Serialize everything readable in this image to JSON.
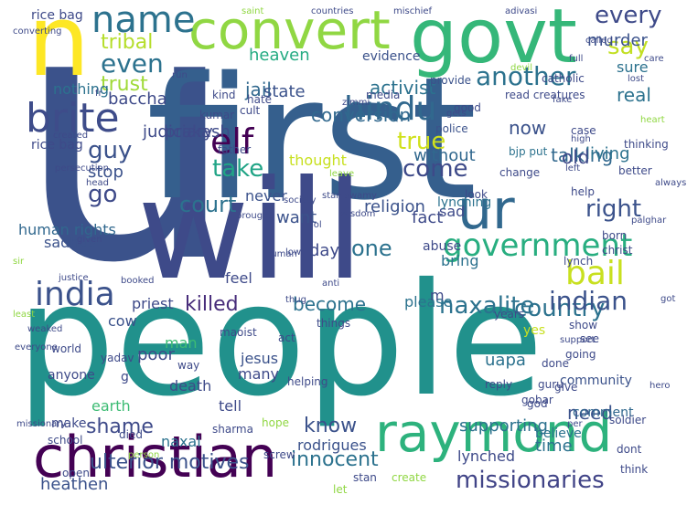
{
  "palette": {
    "purple": "#440154",
    "indigo": "#414487",
    "blue": "#355f8d",
    "teal": "#21918c",
    "green": "#35b779",
    "lime": "#90d743",
    "yellow": "#fde725"
  },
  "words": [
    {
      "text": "u",
      "color": "#3b528b"
    },
    {
      "text": "first",
      "color": "#355f8d"
    },
    {
      "text": "people",
      "color": "#21918c"
    },
    {
      "text": "will",
      "color": "#3e4a89"
    },
    {
      "text": "govt",
      "color": "#35b779"
    },
    {
      "text": "convert",
      "color": "#90d743"
    },
    {
      "text": "n",
      "color": "#fde725"
    },
    {
      "text": "christian",
      "color": "#440154"
    },
    {
      "text": "raymond",
      "color": "#2db27d"
    },
    {
      "text": "ur",
      "color": "#31688e"
    },
    {
      "text": "name",
      "color": "#2c728e"
    },
    {
      "text": "brite",
      "color": "#3e4c8a"
    },
    {
      "text": "government",
      "color": "#28ae80"
    },
    {
      "text": "india",
      "color": "#3b528b"
    },
    {
      "text": "elf",
      "color": "#440154"
    },
    {
      "text": "hindu",
      "color": "#31688e"
    },
    {
      "text": "bail",
      "color": "#c8e020"
    },
    {
      "text": "missionaries",
      "color": "#414487"
    },
    {
      "text": "naxalite",
      "color": "#2c728e"
    },
    {
      "text": "country",
      "color": "#2c728e"
    },
    {
      "text": "indian",
      "color": "#3b528b"
    },
    {
      "text": "another",
      "color": "#2c728e"
    },
    {
      "text": "every",
      "color": "#3e4a89"
    },
    {
      "text": "even",
      "color": "#2c728e"
    },
    {
      "text": "tribal",
      "color": "#b5de2b"
    },
    {
      "text": "trust",
      "color": "#a0da39"
    },
    {
      "text": "say",
      "color": "#c2df23"
    },
    {
      "text": "true",
      "color": "#d0e11c"
    },
    {
      "text": "guy",
      "color": "#3b528b"
    },
    {
      "text": "take",
      "color": "#20a486"
    },
    {
      "text": "come",
      "color": "#3e4a89"
    },
    {
      "text": "right",
      "color": "#3b528b"
    },
    {
      "text": "court",
      "color": "#2c728e"
    },
    {
      "text": "go",
      "color": "#3e4a89"
    },
    {
      "text": "killed",
      "color": "#472c7a"
    },
    {
      "text": "become",
      "color": "#2c728e"
    },
    {
      "text": "know",
      "color": "#3b528b"
    },
    {
      "text": "innocent",
      "color": "#2c728e"
    },
    {
      "text": "shame",
      "color": "#3e4a89"
    },
    {
      "text": "ulterior motives",
      "color": "#3b528b"
    },
    {
      "text": "one",
      "color": "#2c728e"
    },
    {
      "text": "jail",
      "color": "#31688e"
    },
    {
      "text": "activist",
      "color": "#2c728e"
    },
    {
      "text": "now",
      "color": "#3b528b"
    },
    {
      "text": "conversion",
      "color": "#31688e"
    },
    {
      "text": "real",
      "color": "#2c728e"
    },
    {
      "text": "heaven",
      "color": "#25ab82"
    },
    {
      "text": "state",
      "color": "#3b528b"
    },
    {
      "text": "murder",
      "color": "#3b528b"
    },
    {
      "text": "sure",
      "color": "#2c728e"
    },
    {
      "text": "talking",
      "color": "#31688e"
    },
    {
      "text": "living",
      "color": "#2c728e"
    },
    {
      "text": "old",
      "color": "#3e4a89"
    },
    {
      "text": "without",
      "color": "#31688e"
    },
    {
      "text": "stop",
      "color": "#3b528b"
    },
    {
      "text": "prakash",
      "color": "#3e4a89"
    },
    {
      "text": "judiciary",
      "color": "#3e4a89"
    },
    {
      "text": "baccha",
      "color": "#3e4a89"
    },
    {
      "text": "fact",
      "color": "#3e4a89"
    },
    {
      "text": "want",
      "color": "#3b528b"
    },
    {
      "text": "day",
      "color": "#3e4a89"
    },
    {
      "text": "religion",
      "color": "#3b528b"
    },
    {
      "text": "human rights",
      "color": "#31688e"
    },
    {
      "text": "sadhus",
      "color": "#3b528b"
    },
    {
      "text": "priest",
      "color": "#3e4a89"
    },
    {
      "text": "feel",
      "color": "#3e4a89"
    },
    {
      "text": "cow",
      "color": "#3b528b"
    },
    {
      "text": "poor",
      "color": "#3e4a89"
    },
    {
      "text": "man",
      "color": "#3dbc74"
    },
    {
      "text": "jesus",
      "color": "#3b528b"
    },
    {
      "text": "uapa",
      "color": "#2c728e"
    },
    {
      "text": "many",
      "color": "#3e4a89"
    },
    {
      "text": "death",
      "color": "#3e4a89"
    },
    {
      "text": "tell",
      "color": "#3e4a89"
    },
    {
      "text": "need",
      "color": "#3b528b"
    },
    {
      "text": "supporting",
      "color": "#2c728e"
    },
    {
      "text": "time",
      "color": "#2c728e"
    },
    {
      "text": "believe",
      "color": "#2c728e"
    },
    {
      "text": "community",
      "color": "#3b528b"
    },
    {
      "text": "comment",
      "color": "#31688e"
    },
    {
      "text": "lynched",
      "color": "#3e4a89"
    },
    {
      "text": "rodrigues",
      "color": "#3b528b"
    },
    {
      "text": "heathen",
      "color": "#3b528b"
    },
    {
      "text": "naxal",
      "color": "#2c728e"
    },
    {
      "text": "please",
      "color": "#2c728e"
    },
    {
      "text": "bring",
      "color": "#2c728e"
    },
    {
      "text": "thought",
      "color": "#c8e020"
    },
    {
      "text": "never",
      "color": "#3b528b"
    },
    {
      "text": "abuse",
      "color": "#3e4a89"
    },
    {
      "text": "sad",
      "color": "#3e4a89"
    },
    {
      "text": "lynching",
      "color": "#2c728e"
    },
    {
      "text": "nothing",
      "color": "#2c728e"
    },
    {
      "text": "rice bag",
      "color": "#3e4a89"
    },
    {
      "text": "evidence",
      "color": "#3b528b"
    },
    {
      "text": "provide",
      "color": "#3b528b"
    },
    {
      "text": "media",
      "color": "#3e4a89"
    },
    {
      "text": "kind",
      "color": "#3e4a89"
    },
    {
      "text": "kumar",
      "color": "#3e4a89"
    },
    {
      "text": "cult",
      "color": "#3e4a89"
    },
    {
      "text": "hate",
      "color": "#3e4a89"
    },
    {
      "text": "father",
      "color": "#3e4a89"
    },
    {
      "text": "read creatures",
      "color": "#3e4a89"
    },
    {
      "text": "catholic",
      "color": "#3e4a89"
    },
    {
      "text": "police",
      "color": "#3b528b"
    },
    {
      "text": "good",
      "color": "#3e4a89"
    },
    {
      "text": "change",
      "color": "#3e4a89"
    },
    {
      "text": "case",
      "color": "#3e4a89"
    },
    {
      "text": "bjp put",
      "color": "#2c728e"
    },
    {
      "text": "look",
      "color": "#3e4a89"
    },
    {
      "text": "help",
      "color": "#3e4a89"
    },
    {
      "text": "better",
      "color": "#3e4a89"
    },
    {
      "text": "thinking",
      "color": "#3e4a89"
    },
    {
      "text": "show",
      "color": "#3e4a89"
    },
    {
      "text": "see",
      "color": "#3e4a89"
    },
    {
      "text": "going",
      "color": "#3e4a89"
    },
    {
      "text": "yes",
      "color": "#c8e020"
    },
    {
      "text": "give",
      "color": "#3e4a89"
    },
    {
      "text": "guru",
      "color": "#3e4a89"
    },
    {
      "text": "gobar",
      "color": "#3e4a89"
    },
    {
      "text": "god",
      "color": "#3e4a89"
    },
    {
      "text": "done",
      "color": "#3e4a89"
    },
    {
      "text": "reply",
      "color": "#3e4a89"
    },
    {
      "text": "years",
      "color": "#3e4a89"
    },
    {
      "text": "soldier",
      "color": "#3e4a89"
    },
    {
      "text": "born",
      "color": "#3e4a89"
    },
    {
      "text": "christ",
      "color": "#3e4a89"
    },
    {
      "text": "lynch",
      "color": "#3e4a89"
    },
    {
      "text": "act",
      "color": "#3e4a89"
    },
    {
      "text": "things",
      "color": "#3e4a89"
    },
    {
      "text": "maoist",
      "color": "#3e4a89"
    },
    {
      "text": "helping",
      "color": "#3e4a89"
    },
    {
      "text": "anyone",
      "color": "#3e4a89"
    },
    {
      "text": "world",
      "color": "#3e4a89"
    },
    {
      "text": "yadav",
      "color": "#3e4a89"
    },
    {
      "text": "way",
      "color": "#3e4a89"
    },
    {
      "text": "earth",
      "color": "#3dbc74"
    },
    {
      "text": "make",
      "color": "#3e4a89"
    },
    {
      "text": "died",
      "color": "#3e4a89"
    },
    {
      "text": "sharma",
      "color": "#3e4a89"
    },
    {
      "text": "hope",
      "color": "#90d743"
    },
    {
      "text": "school",
      "color": "#3e4a89"
    },
    {
      "text": "screw",
      "color": "#3e4a89"
    },
    {
      "text": "stan",
      "color": "#3e4a89"
    },
    {
      "text": "create",
      "color": "#90d743"
    },
    {
      "text": "open",
      "color": "#3e4a89"
    },
    {
      "text": "let",
      "color": "#90d743"
    },
    {
      "text": "think",
      "color": "#3e4a89"
    },
    {
      "text": "dont",
      "color": "#3e4a89"
    },
    {
      "text": "rice bag",
      "color": "#3e4a89"
    },
    {
      "text": "saint",
      "color": "#90d743"
    },
    {
      "text": "countries",
      "color": "#3e4a89"
    },
    {
      "text": "mischief",
      "color": "#3e4a89"
    },
    {
      "text": "adivasi",
      "color": "#3e4a89"
    },
    {
      "text": "devil",
      "color": "#90d743"
    },
    {
      "text": "full",
      "color": "#3e4a89"
    },
    {
      "text": "called",
      "color": "#3e4a89"
    },
    {
      "text": "care",
      "color": "#3e4a89"
    },
    {
      "text": "lost",
      "color": "#3e4a89"
    },
    {
      "text": "zimmi",
      "color": "#3e4a89"
    },
    {
      "text": "gets",
      "color": "#3e4a89"
    },
    {
      "text": "fake",
      "color": "#3e4a89"
    },
    {
      "text": "heart",
      "color": "#90d743"
    },
    {
      "text": "high",
      "color": "#3e4a89"
    },
    {
      "text": "left",
      "color": "#3e4a89"
    },
    {
      "text": "always",
      "color": "#3e4a89"
    },
    {
      "text": "palghar",
      "color": "#3e4a89"
    },
    {
      "text": "society",
      "color": "#3e4a89"
    },
    {
      "text": "lol",
      "color": "#3e4a89"
    },
    {
      "text": "leave",
      "color": "#90d743"
    },
    {
      "text": "brought",
      "color": "#3e4a89"
    },
    {
      "text": "given",
      "color": "#3e4a89"
    },
    {
      "text": "created",
      "color": "#3e4a89"
    },
    {
      "text": "head",
      "color": "#3e4a89"
    },
    {
      "text": "persecution",
      "color": "#3e4a89"
    },
    {
      "text": "run",
      "color": "#3e4a89"
    },
    {
      "text": "converting",
      "color": "#3e4a89"
    },
    {
      "text": "stan swamy",
      "color": "#3e4a89"
    },
    {
      "text": "wisdom",
      "color": "#3e4a89"
    },
    {
      "text": "booked",
      "color": "#3e4a89"
    },
    {
      "text": "justice",
      "color": "#3e4a89"
    },
    {
      "text": "human",
      "color": "#3e4a89"
    },
    {
      "text": "low",
      "color": "#3e4a89"
    },
    {
      "text": "anti",
      "color": "#3e4a89"
    },
    {
      "text": "thug",
      "color": "#3e4a89"
    },
    {
      "text": "got",
      "color": "#3e4a89"
    },
    {
      "text": "least",
      "color": "#90d743"
    },
    {
      "text": "weaked",
      "color": "#3e4a89"
    },
    {
      "text": "everyone",
      "color": "#3e4a89"
    },
    {
      "text": "missionary",
      "color": "#3e4a89"
    },
    {
      "text": "person",
      "color": "#90d743"
    },
    {
      "text": "support",
      "color": "#3e4a89"
    },
    {
      "text": "hero",
      "color": "#3e4a89"
    },
    {
      "text": "per",
      "color": "#3e4a89"
    },
    {
      "text": "sir",
      "color": "#90d743"
    },
    {
      "text": "fr",
      "color": "#3e4a89"
    },
    {
      "text": "g",
      "color": "#3e4a89"
    },
    {
      "text": "m",
      "color": "#3e4a89"
    }
  ]
}
